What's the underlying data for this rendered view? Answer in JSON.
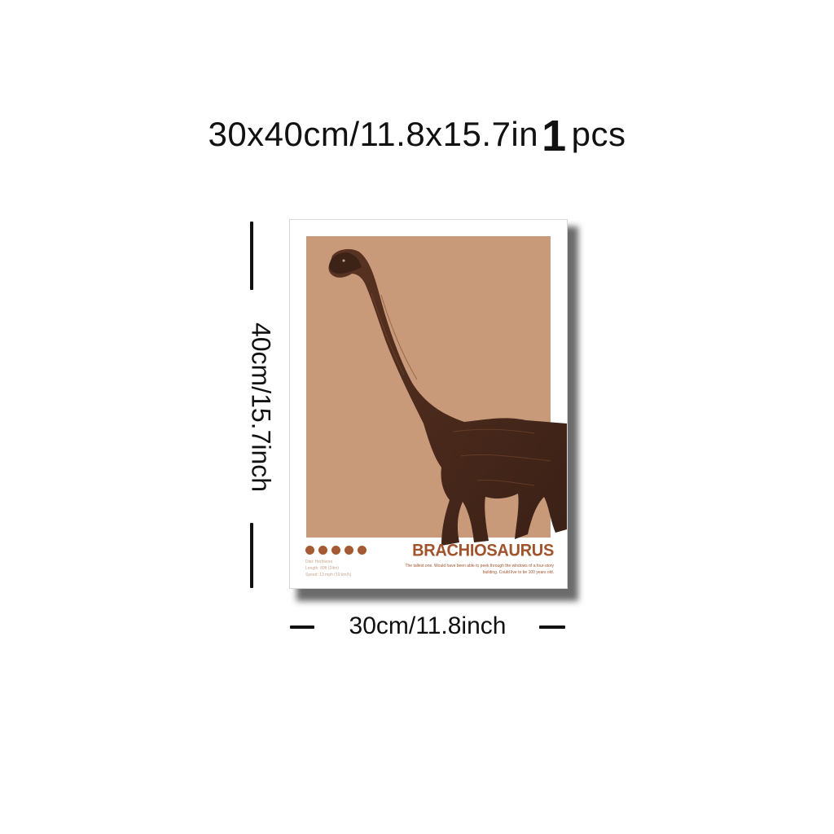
{
  "headline": {
    "size": "30x40cm/11.8x15.7in",
    "quantity_number": "1",
    "quantity_unit": "pcs"
  },
  "dimensions": {
    "height_label": "40cm/15.7inch",
    "width_label": "30cm/11.8inch"
  },
  "poster": {
    "species_name": "BRACHIOSAURUS",
    "description": "The tallest one. Would have been able to peek through the windows of a four-story building. Could live to be 100 years old.",
    "stats": [
      "Diet: Herbivore",
      "Length: 80ft (24m)",
      "Speed: 12 mph (19 km/h)"
    ],
    "dot_count": 5,
    "colors": {
      "panel": "#c89a7a",
      "accent": "#a0532c",
      "dinosaur": "#4a2a1c"
    }
  }
}
